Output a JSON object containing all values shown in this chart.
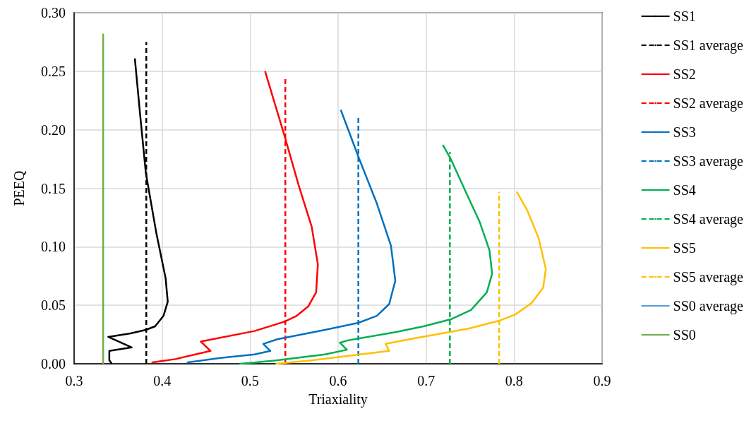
{
  "chart_data": {
    "type": "line",
    "xlabel": "Triaxiality",
    "ylabel": "PEEQ",
    "xlim": [
      0.3,
      0.9
    ],
    "ylim": [
      0,
      0.3
    ],
    "xticks": [
      0.3,
      0.4,
      0.5,
      0.6,
      0.7,
      0.8,
      0.9
    ],
    "yticks": [
      {
        "value": 0,
        "label": "0.00"
      },
      {
        "value": 0.05,
        "label": "0.05"
      },
      {
        "value": 0.1,
        "label": "0.10"
      },
      {
        "value": 0.15,
        "label": "0.15"
      },
      {
        "value": 0.2,
        "label": "0.20"
      },
      {
        "value": 0.25,
        "label": "0.25"
      },
      {
        "value": 0.3,
        "label": "0.30"
      }
    ],
    "grid": true,
    "legend": "right",
    "marker": "none",
    "series": [
      {
        "name": "SS1",
        "color": "#000000",
        "x": [
          0.369,
          0.375,
          0.3815,
          0.3936,
          0.404,
          0.4064,
          0.4016,
          0.392,
          0.3815,
          0.364,
          0.3388,
          0.3655,
          0.34,
          0.34,
          0.3428
        ],
        "values": [
          0.261,
          0.213,
          0.163,
          0.111,
          0.073,
          0.053,
          0.041,
          0.032,
          0.029,
          0.026,
          0.023,
          0.014,
          0.011,
          0.003,
          0.0
        ]
      },
      {
        "name": "SS1 average",
        "color": "#000000",
        "line_style": "dashed",
        "x": [
          0.382,
          0.382
        ],
        "values": [
          0,
          0.275
        ]
      },
      {
        "name": "SS2",
        "color": "#ff0000",
        "x": [
          0.517,
          0.539,
          0.555,
          0.57,
          0.577,
          0.575,
          0.566,
          0.553,
          0.539,
          0.505,
          0.444,
          0.455,
          0.415,
          0.388
        ],
        "values": [
          0.25,
          0.195,
          0.153,
          0.117,
          0.085,
          0.061,
          0.049,
          0.041,
          0.036,
          0.028,
          0.019,
          0.011,
          0.004,
          0.001
        ]
      },
      {
        "name": "SS2 average",
        "color": "#ff0000",
        "line_style": "dashed",
        "x": [
          0.54,
          0.54
        ],
        "values": [
          0,
          0.244
        ]
      },
      {
        "name": "SS3",
        "color": "#0070c0",
        "x": [
          0.603,
          0.623,
          0.644,
          0.66,
          0.665,
          0.658,
          0.644,
          0.623,
          0.585,
          0.531,
          0.515,
          0.523,
          0.505,
          0.466,
          0.428
        ],
        "values": [
          0.217,
          0.177,
          0.137,
          0.101,
          0.071,
          0.051,
          0.041,
          0.035,
          0.029,
          0.021,
          0.017,
          0.011,
          0.008,
          0.005,
          0.001
        ]
      },
      {
        "name": "SS3 average",
        "color": "#0070c0",
        "line_style": "dashed",
        "x": [
          0.623,
          0.623
        ],
        "values": [
          0,
          0.212
        ]
      },
      {
        "name": "SS4",
        "color": "#00b050",
        "x": [
          0.719,
          0.728,
          0.745,
          0.761,
          0.772,
          0.775,
          0.769,
          0.751,
          0.728,
          0.697,
          0.665,
          0.611,
          0.602,
          0.61,
          0.585,
          0.531,
          0.505,
          0.488
        ],
        "values": [
          0.187,
          0.175,
          0.147,
          0.121,
          0.097,
          0.077,
          0.061,
          0.046,
          0.038,
          0.032,
          0.027,
          0.02,
          0.018,
          0.012,
          0.008,
          0.003,
          0.001,
          0.0
        ]
      },
      {
        "name": "SS4 average",
        "color": "#00b050",
        "line_style": "dashed",
        "x": [
          0.727,
          0.727
        ],
        "values": [
          0,
          0.181
        ]
      },
      {
        "name": "SS5",
        "color": "#ffc000",
        "x": [
          0.803,
          0.815,
          0.828,
          0.836,
          0.833,
          0.82,
          0.801,
          0.784,
          0.748,
          0.681,
          0.654,
          0.658,
          0.625,
          0.571,
          0.529
        ],
        "values": [
          0.147,
          0.131,
          0.107,
          0.081,
          0.065,
          0.052,
          0.042,
          0.037,
          0.03,
          0.021,
          0.017,
          0.011,
          0.008,
          0.003,
          0.0
        ]
      },
      {
        "name": "SS5 average",
        "color": "#ffc000",
        "line_style": "dashed",
        "x": [
          0.783,
          0.783
        ],
        "values": [
          0,
          0.147
        ]
      },
      {
        "name": "SS0 average",
        "color": "#5b9bd5",
        "line_style": "solid",
        "values": [
          null,
          null
        ]
      },
      {
        "name": "SS0",
        "color": "#70ad47",
        "line_style": "solid",
        "x": [
          0.333,
          0.333
        ],
        "values": [
          0,
          0.282
        ]
      }
    ]
  }
}
